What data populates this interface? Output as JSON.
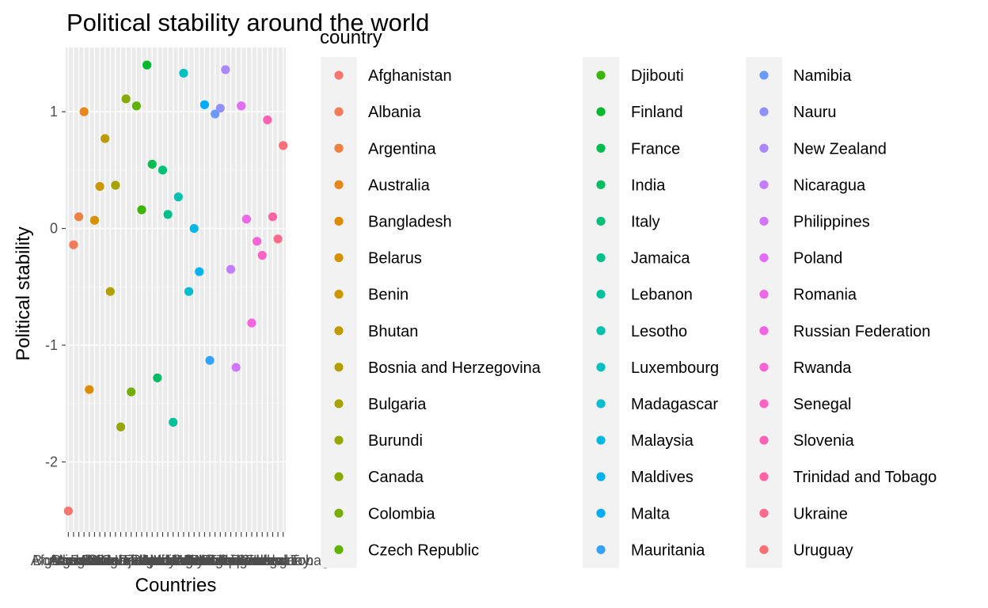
{
  "chart_data": {
    "type": "scatter",
    "title": "Political stability around the world",
    "xlabel": "Countries",
    "ylabel": "Political stability",
    "legend_title": "country",
    "legend_position": "right",
    "grid": true,
    "ylim": [
      -2.6,
      1.55
    ],
    "yticks": [
      -2,
      -1,
      0,
      1
    ],
    "ytick_labels": [
      "-2",
      "-1",
      "0",
      "1"
    ],
    "categories": [
      "Afghanistan",
      "Albania",
      "Argentina",
      "Australia",
      "Bangladesh",
      "Belarus",
      "Benin",
      "Bhutan",
      "Bosnia and Herzegovina",
      "Bulgaria",
      "Burundi",
      "Canada",
      "Colombia",
      "Czech Republic",
      "Djibouti",
      "Finland",
      "France",
      "India",
      "Italy",
      "Jamaica",
      "Lebanon",
      "Lesotho",
      "Luxembourg",
      "Madagascar",
      "Malaysia",
      "Maldives",
      "Malta",
      "Mauritania",
      "Namibia",
      "Nauru",
      "New Zealand",
      "Nicaragua",
      "Philippines",
      "Poland",
      "Romania",
      "Russian Federation",
      "Rwanda",
      "Senegal",
      "Slovenia",
      "Trinidad and Tobago",
      "Ukraine",
      "Uruguay"
    ],
    "values": [
      -2.42,
      -0.14,
      0.1,
      1.0,
      -1.38,
      0.07,
      0.36,
      0.77,
      -0.54,
      0.37,
      -1.7,
      1.11,
      -1.4,
      1.05,
      0.16,
      1.4,
      0.55,
      -1.28,
      0.5,
      0.12,
      -1.66,
      0.27,
      1.33,
      -0.54,
      0.0,
      -0.37,
      1.06,
      -1.13,
      0.98,
      1.03,
      1.36,
      -0.35,
      -1.19,
      1.05,
      0.08,
      -0.81,
      -0.11,
      -0.23,
      0.93,
      0.1,
      -0.09,
      0.71
    ],
    "colors": [
      "#F8766D",
      "#F37B59",
      "#ED8141",
      "#E7861B",
      "#DF8B00",
      "#D59100",
      "#CB9600",
      "#C09B00",
      "#B49F00",
      "#A7A300",
      "#98A600",
      "#88AA00",
      "#75AE00",
      "#5EB300",
      "#39B600",
      "#00B82B",
      "#00BB4E",
      "#00BD64",
      "#00BF77",
      "#00C08A",
      "#00C19C",
      "#00C0AE",
      "#00BFBF",
      "#00BCD0",
      "#00B8E0",
      "#00B2EE",
      "#00ABFB",
      "#33A2FF",
      "#6B9AFF",
      "#8F91FF",
      "#AC88FF",
      "#C17FFF",
      "#D376FF",
      "#E26EF6",
      "#EE67EA",
      "#F564E3",
      "#FA63D5",
      "#FD62C5",
      "#FF62B4",
      "#FF65A2",
      "#FF6A8F",
      "#FA7076"
    ],
    "x_tick_labels_overlapping": "Bangladesh"
  }
}
